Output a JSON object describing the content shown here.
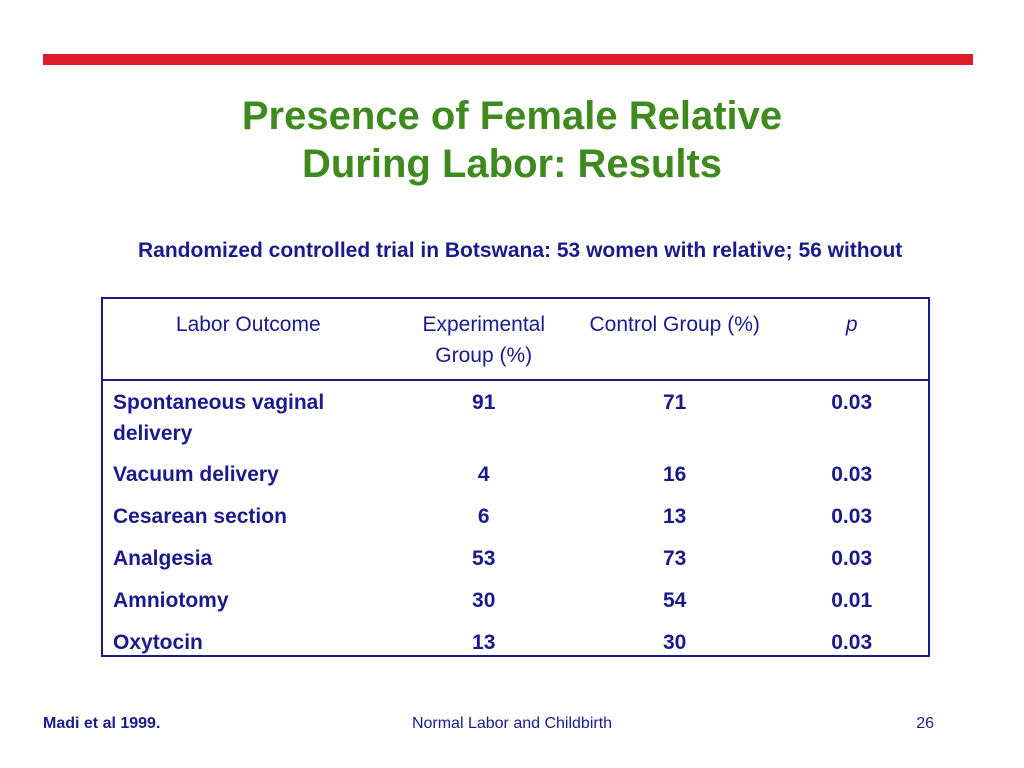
{
  "title": {
    "line1": "Presence of Female Relative",
    "line2": "During Labor: Results"
  },
  "subtitle": "Randomized controlled trial in Botswana: 53 women with relative; 56 without",
  "table": {
    "headers": [
      "Labor Outcome",
      "Experimental Group (%)",
      "Control Group (%)",
      "p"
    ],
    "rows": [
      [
        "Spontaneous vaginal delivery",
        "91",
        "71",
        "0.03"
      ],
      [
        "Vacuum delivery",
        "4",
        "16",
        "0.03"
      ],
      [
        "Cesarean section",
        "6",
        "13",
        "0.03"
      ],
      [
        "Analgesia",
        "53",
        "73",
        "0.03"
      ],
      [
        "Amniotomy",
        "30",
        "54",
        "0.01"
      ],
      [
        "Oxytocin",
        "13",
        "30",
        "0.03"
      ]
    ]
  },
  "footer": {
    "citation": "Madi et al 1999.",
    "course": "Normal Labor and Childbirth",
    "page_number": "26"
  },
  "colors": {
    "rule": "#dc1c2c",
    "title": "#3f8a1f",
    "text": "#1a1a8c"
  }
}
